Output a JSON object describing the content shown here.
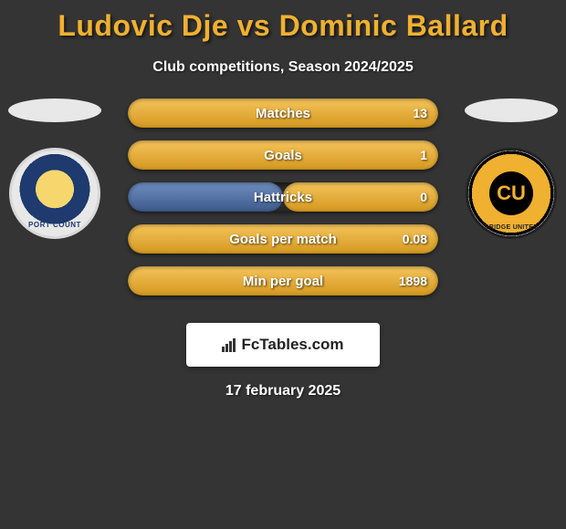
{
  "title": "Ludovic Dje vs Dominic Ballard",
  "subtitle": "Club competitions, Season 2024/2025",
  "date": "17 february 2025",
  "brand": "FcTables.com",
  "colors": {
    "accent_title": "#f0b030",
    "left_bar_top": "#6e8dbf",
    "left_bar_bottom": "#3d5a8a",
    "right_bar_top": "#f5c45a",
    "right_bar_bottom": "#d49820",
    "bar_track": "#2a2a2a",
    "background": "#343434",
    "text": "#ffffff"
  },
  "crests": {
    "left": {
      "label": "PORT COUNT",
      "primary": "#1e3a6e",
      "secondary": "#f5d76e"
    },
    "right": {
      "label": "BRIDGE UNITED",
      "initials": "CU",
      "primary": "#f0b030",
      "secondary": "#000000"
    }
  },
  "stats": [
    {
      "label": "Matches",
      "left_val": 0,
      "right_val": 13,
      "right_display": "13",
      "left_pct": 50,
      "right_pct": 100
    },
    {
      "label": "Goals",
      "left_val": 0,
      "right_val": 1,
      "right_display": "1",
      "left_pct": 50,
      "right_pct": 100
    },
    {
      "label": "Hattricks",
      "left_val": 0,
      "right_val": 0,
      "right_display": "0",
      "left_pct": 50,
      "right_pct": 50
    },
    {
      "label": "Goals per match",
      "left_val": 0,
      "right_val": 0.08,
      "right_display": "0.08",
      "left_pct": 50,
      "right_pct": 100
    },
    {
      "label": "Min per goal",
      "left_val": 0,
      "right_val": 1898,
      "right_display": "1898",
      "left_pct": 50,
      "right_pct": 100
    }
  ]
}
